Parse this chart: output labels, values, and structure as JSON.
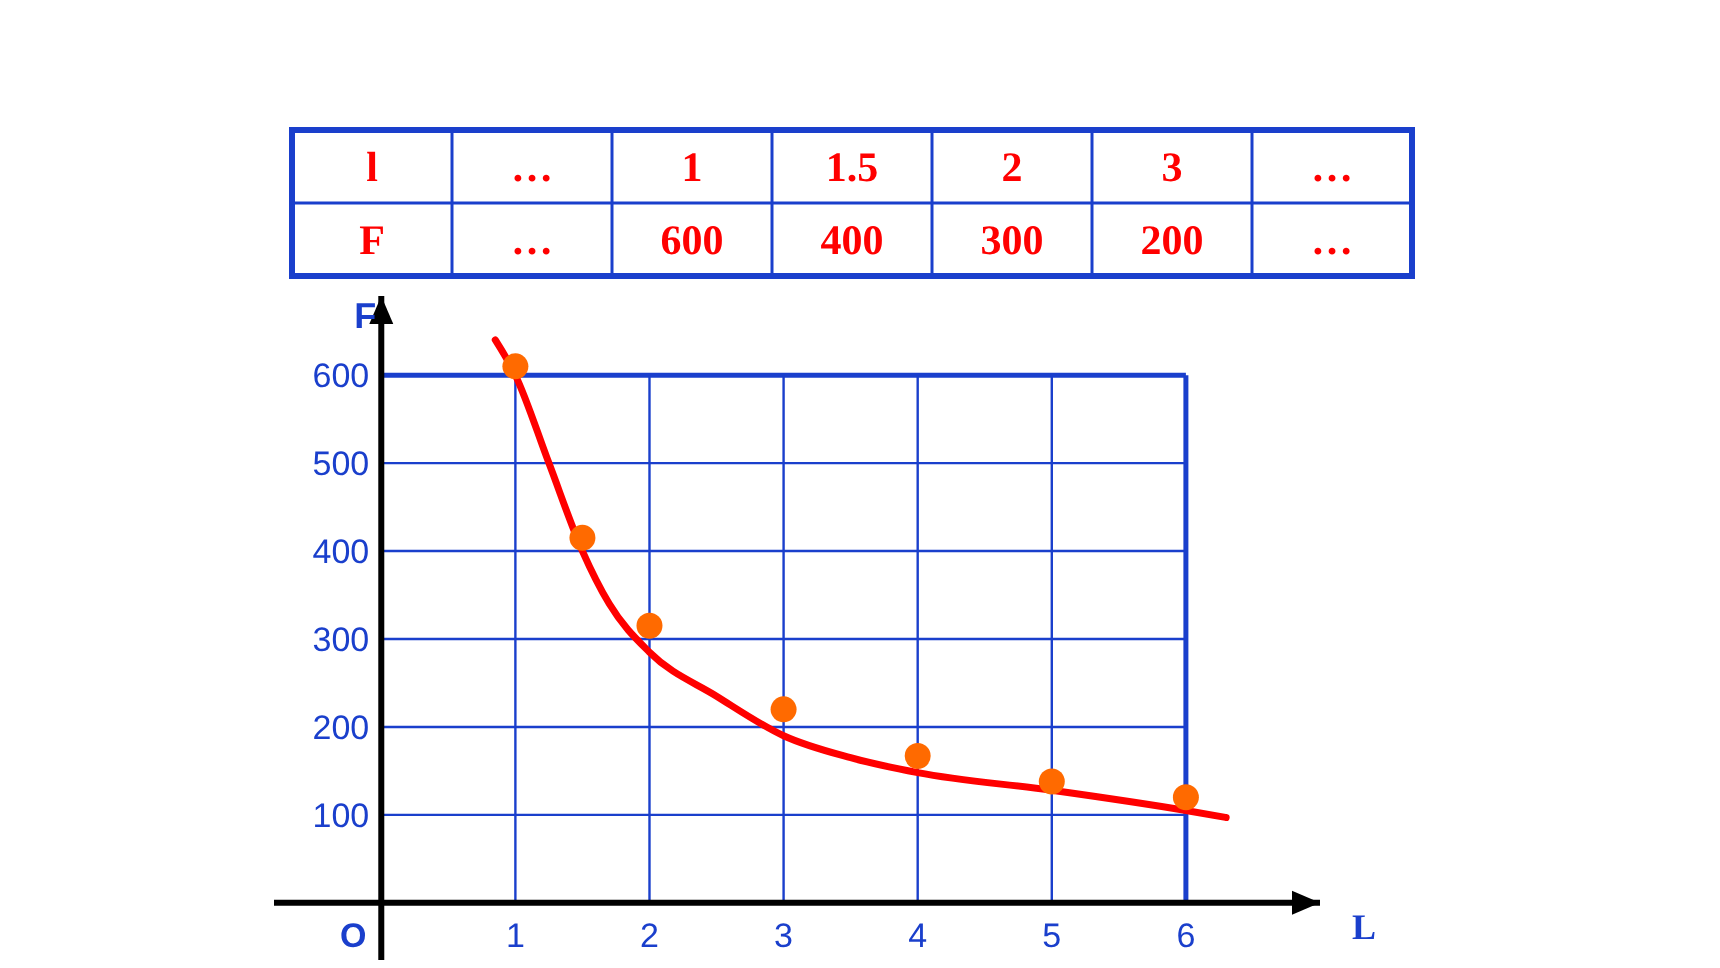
{
  "chart_data": {
    "type": "scatter",
    "xlabel": "L",
    "ylabel": "F",
    "annotations": [
      "l",
      "…",
      "1",
      "1.5",
      "2",
      "3",
      "…",
      "F",
      "…",
      "600",
      "400",
      "300",
      "200",
      "…",
      "O"
    ],
    "xlim": [
      -0.8,
      7
    ],
    "ylim": [
      -65,
      690
    ],
    "xticks": [
      1,
      2,
      3,
      4,
      5,
      6
    ],
    "yticks": [
      100,
      200,
      300,
      400,
      500,
      600
    ],
    "grid": true,
    "marker": "circle",
    "series": [
      {
        "type": "line",
        "color": "#ff0000",
        "marker": "none",
        "line_style": "solid",
        "x": [
          0.85,
          1,
          1.25,
          1.5,
          1.7,
          2,
          2.5,
          3,
          3.5,
          4,
          5,
          6,
          6.3
        ],
        "values": [
          640,
          600,
          500,
          400,
          340,
          285,
          235,
          190,
          165,
          148,
          128,
          105,
          97
        ]
      },
      {
        "color": "#ff6a00",
        "x": [
          1,
          1.5,
          2,
          3,
          4,
          5,
          6
        ],
        "values": [
          610,
          415,
          315,
          220,
          167,
          138,
          120
        ]
      }
    ]
  }
}
